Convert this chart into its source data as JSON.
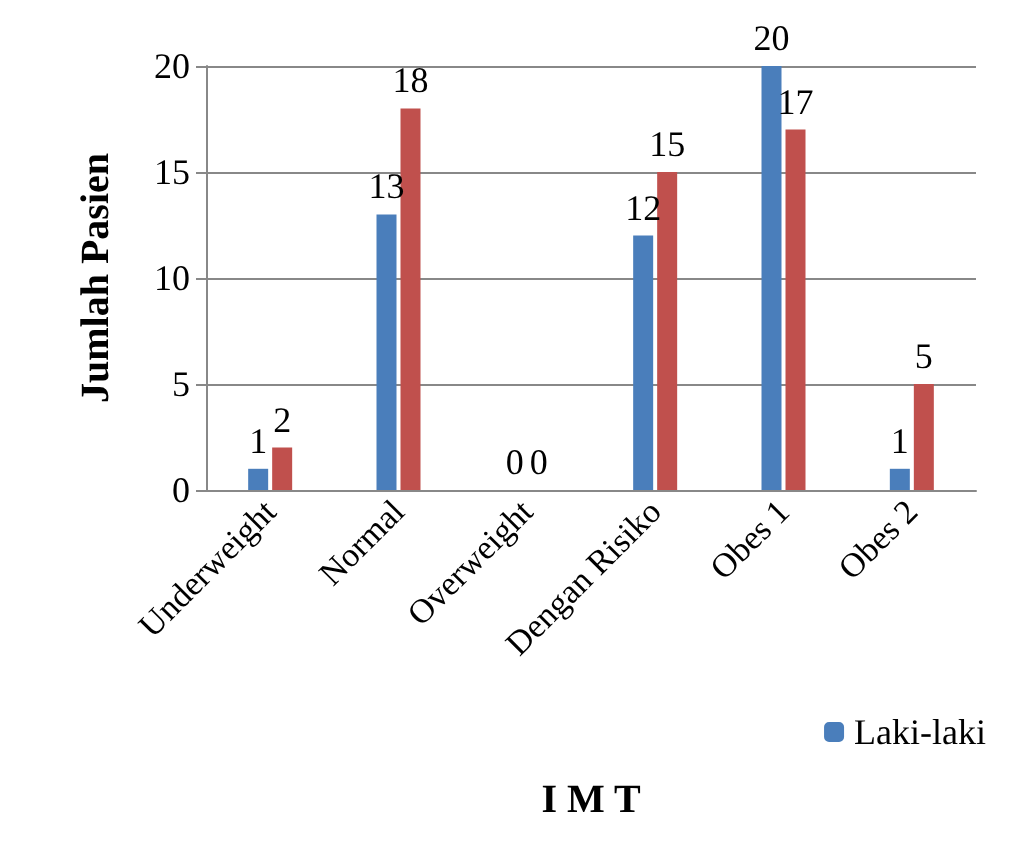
{
  "chart_data": {
    "type": "bar",
    "xlabel": "I M T",
    "ylabel": "Jumlah Pasien",
    "categories": [
      "Underweight",
      "Normal",
      "Overweight",
      "Dengan Risiko",
      "Obes 1",
      "Obes 2"
    ],
    "series": [
      {
        "name": "Laki-laki",
        "color": "#4a7ebb",
        "values": [
          1,
          13,
          0,
          12,
          20,
          1
        ]
      },
      {
        "color": "#c0504d",
        "values": [
          2,
          18,
          0,
          15,
          17,
          5
        ]
      }
    ],
    "ylim": [
      0,
      20
    ],
    "yticks": [
      0,
      5,
      10,
      15,
      20
    ],
    "grid": "y",
    "legend": "bottom right",
    "data_labels": true
  }
}
